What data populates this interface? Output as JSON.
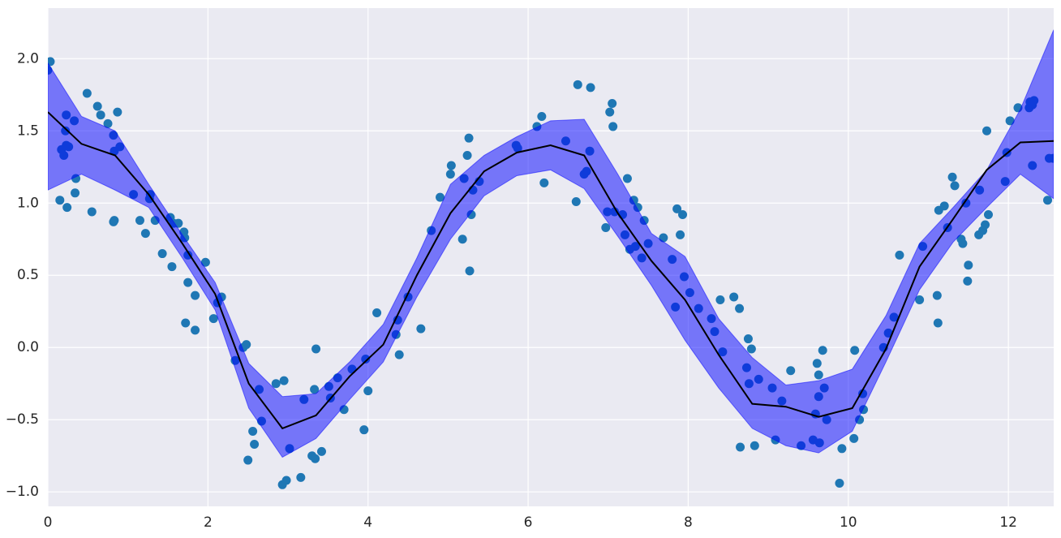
{
  "chart_data": {
    "type": "line",
    "xlim": [
      0,
      12.566
    ],
    "ylim": [
      -1.1,
      2.35
    ],
    "xticks": [
      0,
      2,
      4,
      6,
      8,
      10,
      12
    ],
    "yticks": [
      {
        "value": -1.0,
        "label": "−1.0"
      },
      {
        "value": -0.5,
        "label": "−0.5"
      },
      {
        "value": 0.0,
        "label": "0.0"
      },
      {
        "value": 0.5,
        "label": "0.5"
      },
      {
        "value": 1.0,
        "label": "1.0"
      },
      {
        "value": 1.5,
        "label": "1.5"
      },
      {
        "value": 2.0,
        "label": "2.0"
      }
    ],
    "grid": true,
    "series": [
      {
        "type": "scatter",
        "color": "#1f77b4",
        "x": [
          0,
          0.03,
          0.15,
          0.17,
          0.2,
          0.22,
          0.23,
          0.23,
          0.24,
          0.26,
          0.33,
          0.34,
          0.35,
          0.49,
          0.55,
          0.62,
          0.66,
          0.75,
          0.82,
          0.82,
          0.83,
          0.83,
          0.87,
          0.9,
          1.07,
          1.15,
          1.22,
          1.27,
          1.28,
          1.34,
          1.43,
          1.53,
          1.55,
          1.57,
          1.63,
          1.7,
          1.71,
          1.72,
          1.75,
          1.75,
          1.84,
          1.84,
          1.97,
          2.07,
          2.12,
          2.17,
          2.34,
          2.44,
          2.48,
          2.5,
          2.56,
          2.58,
          2.64,
          2.67,
          2.85,
          2.93,
          2.95,
          2.98,
          3.02,
          3.16,
          3.2,
          3.3,
          3.34,
          3.33,
          3.35,
          3.42,
          3.51,
          3.53,
          3.62,
          3.7,
          3.8,
          3.95,
          3.97,
          4.0,
          4.11,
          4.35,
          4.37,
          4.39,
          4.5,
          4.66,
          4.79,
          4.9,
          5.03,
          5.04,
          5.18,
          5.24,
          5.2,
          5.26,
          5.27,
          5.29,
          5.31,
          5.39,
          5.85,
          5.87,
          6.11,
          6.17,
          6.2,
          6.47,
          6.6,
          6.62,
          6.7,
          6.73,
          6.78,
          6.77,
          6.97,
          6.99,
          7.02,
          7.05,
          7.06,
          7.08,
          7.18,
          7.21,
          7.24,
          7.27,
          7.32,
          7.34,
          7.37,
          7.42,
          7.45,
          7.5,
          7.69,
          7.8,
          7.84,
          7.86,
          7.9,
          7.93,
          7.95,
          8.02,
          8.13,
          8.29,
          8.33,
          8.4,
          8.43,
          8.57,
          8.64,
          8.65,
          8.73,
          8.75,
          8.76,
          8.79,
          8.83,
          8.88,
          9.05,
          9.09,
          9.17,
          9.28,
          9.41,
          9.56,
          9.59,
          9.61,
          9.63,
          9.63,
          9.64,
          9.68,
          9.7,
          9.73,
          9.89,
          9.92,
          10.07,
          10.08,
          10.14,
          10.18,
          10.19,
          10.44,
          10.5,
          10.57,
          10.64,
          10.89,
          10.93,
          11.11,
          11.12,
          11.13,
          11.2,
          11.24,
          11.3,
          11.33,
          11.41,
          11.43,
          11.47,
          11.49,
          11.5,
          11.63,
          11.64,
          11.68,
          11.71,
          11.75,
          11.73,
          11.96,
          11.98,
          12.02,
          12.12,
          12.26,
          12.27,
          12.3,
          12.3,
          12.32,
          12.49,
          12.51,
          12.56
        ],
        "values": [
          1.92,
          1.98,
          1.02,
          1.37,
          1.33,
          1.5,
          1.4,
          1.61,
          0.97,
          1.39,
          1.57,
          1.07,
          1.17,
          1.76,
          0.94,
          1.67,
          1.61,
          1.55,
          1.47,
          0.87,
          0.88,
          1.36,
          1.63,
          1.39,
          1.06,
          0.88,
          0.79,
          1.03,
          1.06,
          0.88,
          0.65,
          0.9,
          0.56,
          0.86,
          0.86,
          0.8,
          0.76,
          0.17,
          0.64,
          0.45,
          0.36,
          0.12,
          0.59,
          0.2,
          0.31,
          0.35,
          -0.09,
          0.0,
          0.02,
          -0.78,
          -0.58,
          -0.67,
          -0.29,
          -0.51,
          -0.25,
          -0.95,
          -0.23,
          -0.92,
          -0.7,
          -0.9,
          -0.36,
          -0.75,
          -0.77,
          -0.29,
          -0.01,
          -0.72,
          -0.27,
          -0.35,
          -0.21,
          -0.43,
          -0.15,
          -0.57,
          -0.08,
          -0.3,
          0.24,
          0.09,
          0.19,
          -0.05,
          0.35,
          0.13,
          0.81,
          1.04,
          1.2,
          1.26,
          0.75,
          1.33,
          1.17,
          1.45,
          0.53,
          0.92,
          1.09,
          1.15,
          1.4,
          1.38,
          1.53,
          1.6,
          1.14,
          1.43,
          1.01,
          1.82,
          1.2,
          1.22,
          1.8,
          1.36,
          0.83,
          0.94,
          1.63,
          1.69,
          1.53,
          0.94,
          0.92,
          0.78,
          1.17,
          0.68,
          1.02,
          0.7,
          0.97,
          0.62,
          0.88,
          0.72,
          0.76,
          0.61,
          0.28,
          0.96,
          0.78,
          0.92,
          0.49,
          0.38,
          0.27,
          0.2,
          0.11,
          0.33,
          -0.03,
          0.35,
          0.27,
          -0.69,
          -0.14,
          0.06,
          -0.25,
          -0.01,
          -0.68,
          -0.22,
          -0.28,
          -0.64,
          -0.37,
          -0.16,
          -0.68,
          -0.64,
          -0.46,
          -0.11,
          -0.19,
          -0.34,
          -0.66,
          -0.02,
          -0.28,
          -0.5,
          -0.94,
          -0.7,
          -0.63,
          -0.02,
          -0.5,
          -0.32,
          -0.43,
          0.0,
          0.1,
          0.21,
          0.64,
          0.33,
          0.7,
          0.36,
          0.17,
          0.95,
          0.98,
          0.83,
          1.18,
          1.12,
          0.75,
          0.72,
          1.0,
          0.46,
          0.57,
          0.78,
          1.09,
          0.81,
          0.85,
          0.92,
          1.5,
          1.15,
          1.35,
          1.57,
          1.66,
          1.66,
          1.7,
          1.26,
          1.68,
          1.71,
          1.02,
          1.31,
          1.31
        ]
      },
      {
        "type": "band",
        "color": "#0000ff",
        "x": [
          0,
          0.42,
          0.84,
          1.26,
          1.68,
          2.09,
          2.51,
          2.93,
          3.35,
          3.77,
          4.19,
          4.61,
          5.03,
          5.45,
          5.86,
          6.28,
          6.7,
          7.12,
          7.54,
          7.96,
          8.38,
          8.8,
          9.22,
          9.63,
          10.05,
          10.47,
          10.89,
          11.31,
          11.73,
          12.15,
          12.566
        ],
        "upper": [
          1.97,
          1.6,
          1.5,
          1.13,
          0.78,
          0.45,
          -0.11,
          -0.34,
          -0.32,
          -0.1,
          0.16,
          0.62,
          1.13,
          1.33,
          1.46,
          1.57,
          1.58,
          1.2,
          0.79,
          0.63,
          0.2,
          -0.07,
          -0.26,
          -0.23,
          -0.15,
          0.22,
          0.72,
          0.97,
          1.23,
          1.65,
          2.2
        ],
        "lower": [
          1.09,
          1.2,
          1.09,
          0.97,
          0.62,
          0.26,
          -0.42,
          -0.76,
          -0.63,
          -0.36,
          -0.1,
          0.35,
          0.75,
          1.05,
          1.19,
          1.23,
          1.1,
          0.77,
          0.43,
          0.05,
          -0.28,
          -0.56,
          -0.68,
          -0.73,
          -0.58,
          -0.1,
          0.4,
          0.73,
          0.97,
          1.2,
          1.03
        ]
      },
      {
        "type": "line",
        "color": "#000000",
        "x": [
          0,
          0.42,
          0.84,
          1.26,
          1.68,
          2.09,
          2.51,
          2.93,
          3.35,
          3.77,
          4.19,
          4.61,
          5.03,
          5.45,
          5.86,
          6.28,
          6.7,
          7.12,
          7.54,
          7.96,
          8.38,
          8.8,
          9.22,
          9.63,
          10.05,
          10.47,
          10.89,
          11.31,
          11.73,
          12.15,
          12.566
        ],
        "values": [
          1.63,
          1.41,
          1.33,
          1.06,
          0.72,
          0.37,
          -0.25,
          -0.56,
          -0.47,
          -0.2,
          0.02,
          0.5,
          0.93,
          1.22,
          1.35,
          1.4,
          1.33,
          0.93,
          0.6,
          0.33,
          -0.05,
          -0.39,
          -0.41,
          -0.48,
          -0.42,
          -0.01,
          0.56,
          0.89,
          1.23,
          1.42,
          1.43
        ]
      }
    ]
  }
}
